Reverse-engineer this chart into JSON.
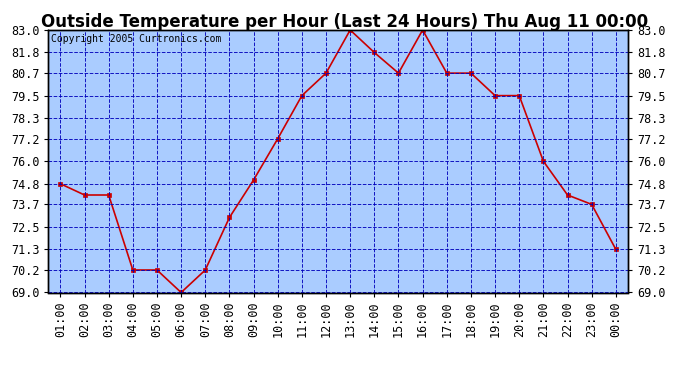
{
  "title": "Outside Temperature per Hour (Last 24 Hours) Thu Aug 11 00:00",
  "copyright": "Copyright 2005 Curtronics.com",
  "hours": [
    "01:00",
    "02:00",
    "03:00",
    "04:00",
    "05:00",
    "06:00",
    "07:00",
    "08:00",
    "09:00",
    "10:00",
    "11:00",
    "12:00",
    "13:00",
    "14:00",
    "15:00",
    "16:00",
    "17:00",
    "18:00",
    "19:00",
    "20:00",
    "21:00",
    "22:00",
    "23:00",
    "00:00"
  ],
  "temps": [
    74.8,
    74.2,
    74.2,
    70.2,
    70.2,
    69.0,
    70.2,
    73.0,
    75.0,
    77.2,
    79.5,
    80.7,
    83.0,
    81.8,
    80.7,
    83.0,
    80.7,
    80.7,
    79.5,
    79.5,
    76.0,
    74.2,
    73.7,
    71.3
  ],
  "ylim": [
    69.0,
    83.0
  ],
  "yticks": [
    69.0,
    70.2,
    71.3,
    72.5,
    73.7,
    74.8,
    76.0,
    77.2,
    78.3,
    79.5,
    80.7,
    81.8,
    83.0
  ],
  "line_color": "#cc0000",
  "marker_color": "#cc0000",
  "bg_color": "#aaccff",
  "fig_bg_color": "#ffffff",
  "grid_color": "#0000bb",
  "title_fontsize": 12,
  "copyright_fontsize": 7,
  "tick_fontsize": 8.5,
  "title_bg": "#dddddd"
}
